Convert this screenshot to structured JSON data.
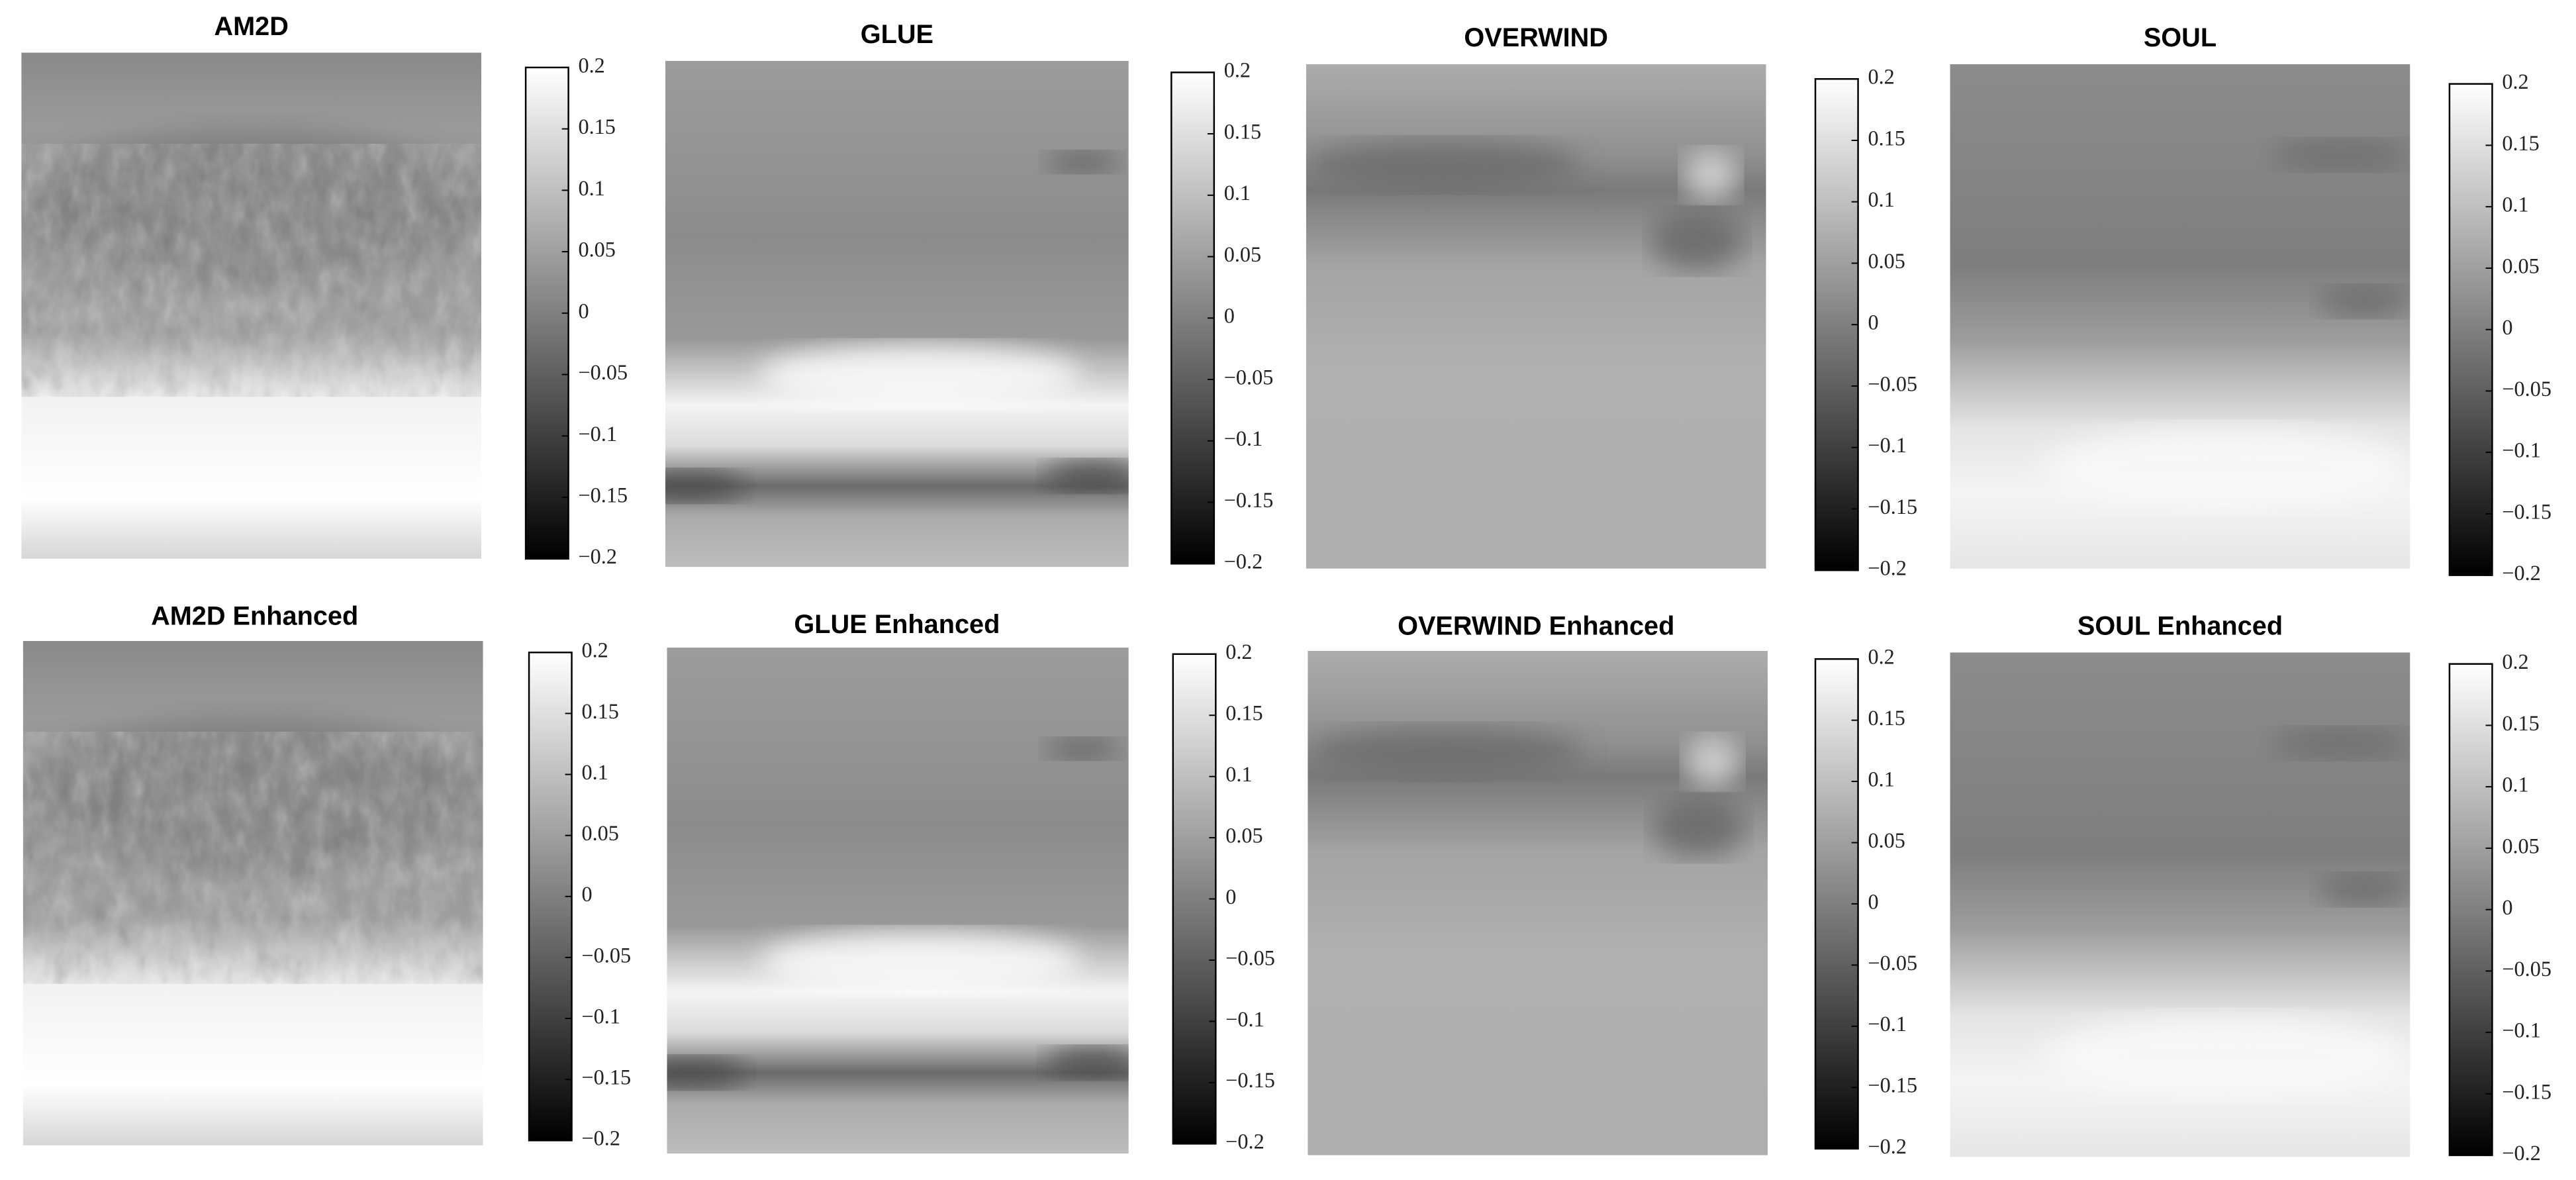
{
  "chart_data": [
    {
      "type": "heatmap",
      "title": "AM2D",
      "clim": [
        -0.2,
        0.2
      ],
      "cticks": [
        {
          "value": -0.2,
          "label": "−0.2"
        },
        {
          "value": -0.15,
          "label": "−0.15"
        },
        {
          "value": -0.1,
          "label": "−0.1"
        },
        {
          "value": -0.05,
          "label": "−0.05"
        },
        0,
        0.05,
        0.1,
        0.15,
        0.2
      ]
    },
    {
      "type": "heatmap",
      "title": "GLUE",
      "clim": [
        -0.2,
        0.2
      ],
      "cticks": [
        {
          "value": -0.2,
          "label": "−0.2"
        },
        {
          "value": -0.15,
          "label": "−0.15"
        },
        {
          "value": -0.1,
          "label": "−0.1"
        },
        {
          "value": -0.05,
          "label": "−0.05"
        },
        0,
        0.05,
        0.1,
        0.15,
        0.2
      ]
    },
    {
      "type": "heatmap",
      "title": "OVERWIND",
      "clim": [
        -0.2,
        0.2
      ],
      "cticks": [
        {
          "value": -0.2,
          "label": "−0.2"
        },
        {
          "value": -0.15,
          "label": "−0.15"
        },
        {
          "value": -0.1,
          "label": "−0.1"
        },
        {
          "value": -0.05,
          "label": "−0.05"
        },
        0,
        0.05,
        0.1,
        0.15,
        0.2
      ]
    },
    {
      "type": "heatmap",
      "title": "SOUL",
      "clim": [
        -0.2,
        0.2
      ],
      "cticks": [
        {
          "value": -0.2,
          "label": "−0.2"
        },
        {
          "value": -0.15,
          "label": "−0.15"
        },
        {
          "value": -0.1,
          "label": "−0.1"
        },
        {
          "value": -0.05,
          "label": "−0.05"
        },
        0,
        0.05,
        0.1,
        0.15,
        0.2
      ]
    },
    {
      "type": "heatmap",
      "title": "AM2D Enhanced",
      "clim": [
        -0.2,
        0.2
      ],
      "cticks": [
        {
          "value": -0.2,
          "label": "−0.2"
        },
        {
          "value": -0.15,
          "label": "−0.15"
        },
        {
          "value": -0.1,
          "label": "−0.1"
        },
        {
          "value": -0.05,
          "label": "−0.05"
        },
        0,
        0.05,
        0.1,
        0.15,
        0.2
      ]
    },
    {
      "type": "heatmap",
      "title": "GLUE Enhanced",
      "clim": [
        -0.2,
        0.2
      ],
      "cticks": [
        {
          "value": -0.2,
          "label": "−0.2"
        },
        {
          "value": -0.15,
          "label": "−0.15"
        },
        {
          "value": -0.1,
          "label": "−0.1"
        },
        {
          "value": -0.05,
          "label": "−0.05"
        },
        0,
        0.05,
        0.1,
        0.15,
        0.2
      ]
    },
    {
      "type": "heatmap",
      "title": "OVERWIND Enhanced",
      "clim": [
        -0.2,
        0.2
      ],
      "cticks": [
        {
          "value": -0.2,
          "label": "−0.2"
        },
        {
          "value": -0.15,
          "label": "−0.15"
        },
        {
          "value": -0.1,
          "label": "−0.1"
        },
        {
          "value": -0.05,
          "label": "−0.05"
        },
        0,
        0.05,
        0.1,
        0.15,
        0.2
      ]
    },
    {
      "type": "heatmap",
      "title": "SOUL Enhanced",
      "clim": [
        -0.2,
        0.2
      ],
      "cticks": [
        {
          "value": -0.2,
          "label": "−0.2"
        },
        {
          "value": -0.15,
          "label": "−0.15"
        },
        {
          "value": -0.1,
          "label": "−0.1"
        },
        {
          "value": -0.05,
          "label": "−0.05"
        },
        0,
        0.05,
        0.1,
        0.15,
        0.2
      ]
    }
  ]
}
